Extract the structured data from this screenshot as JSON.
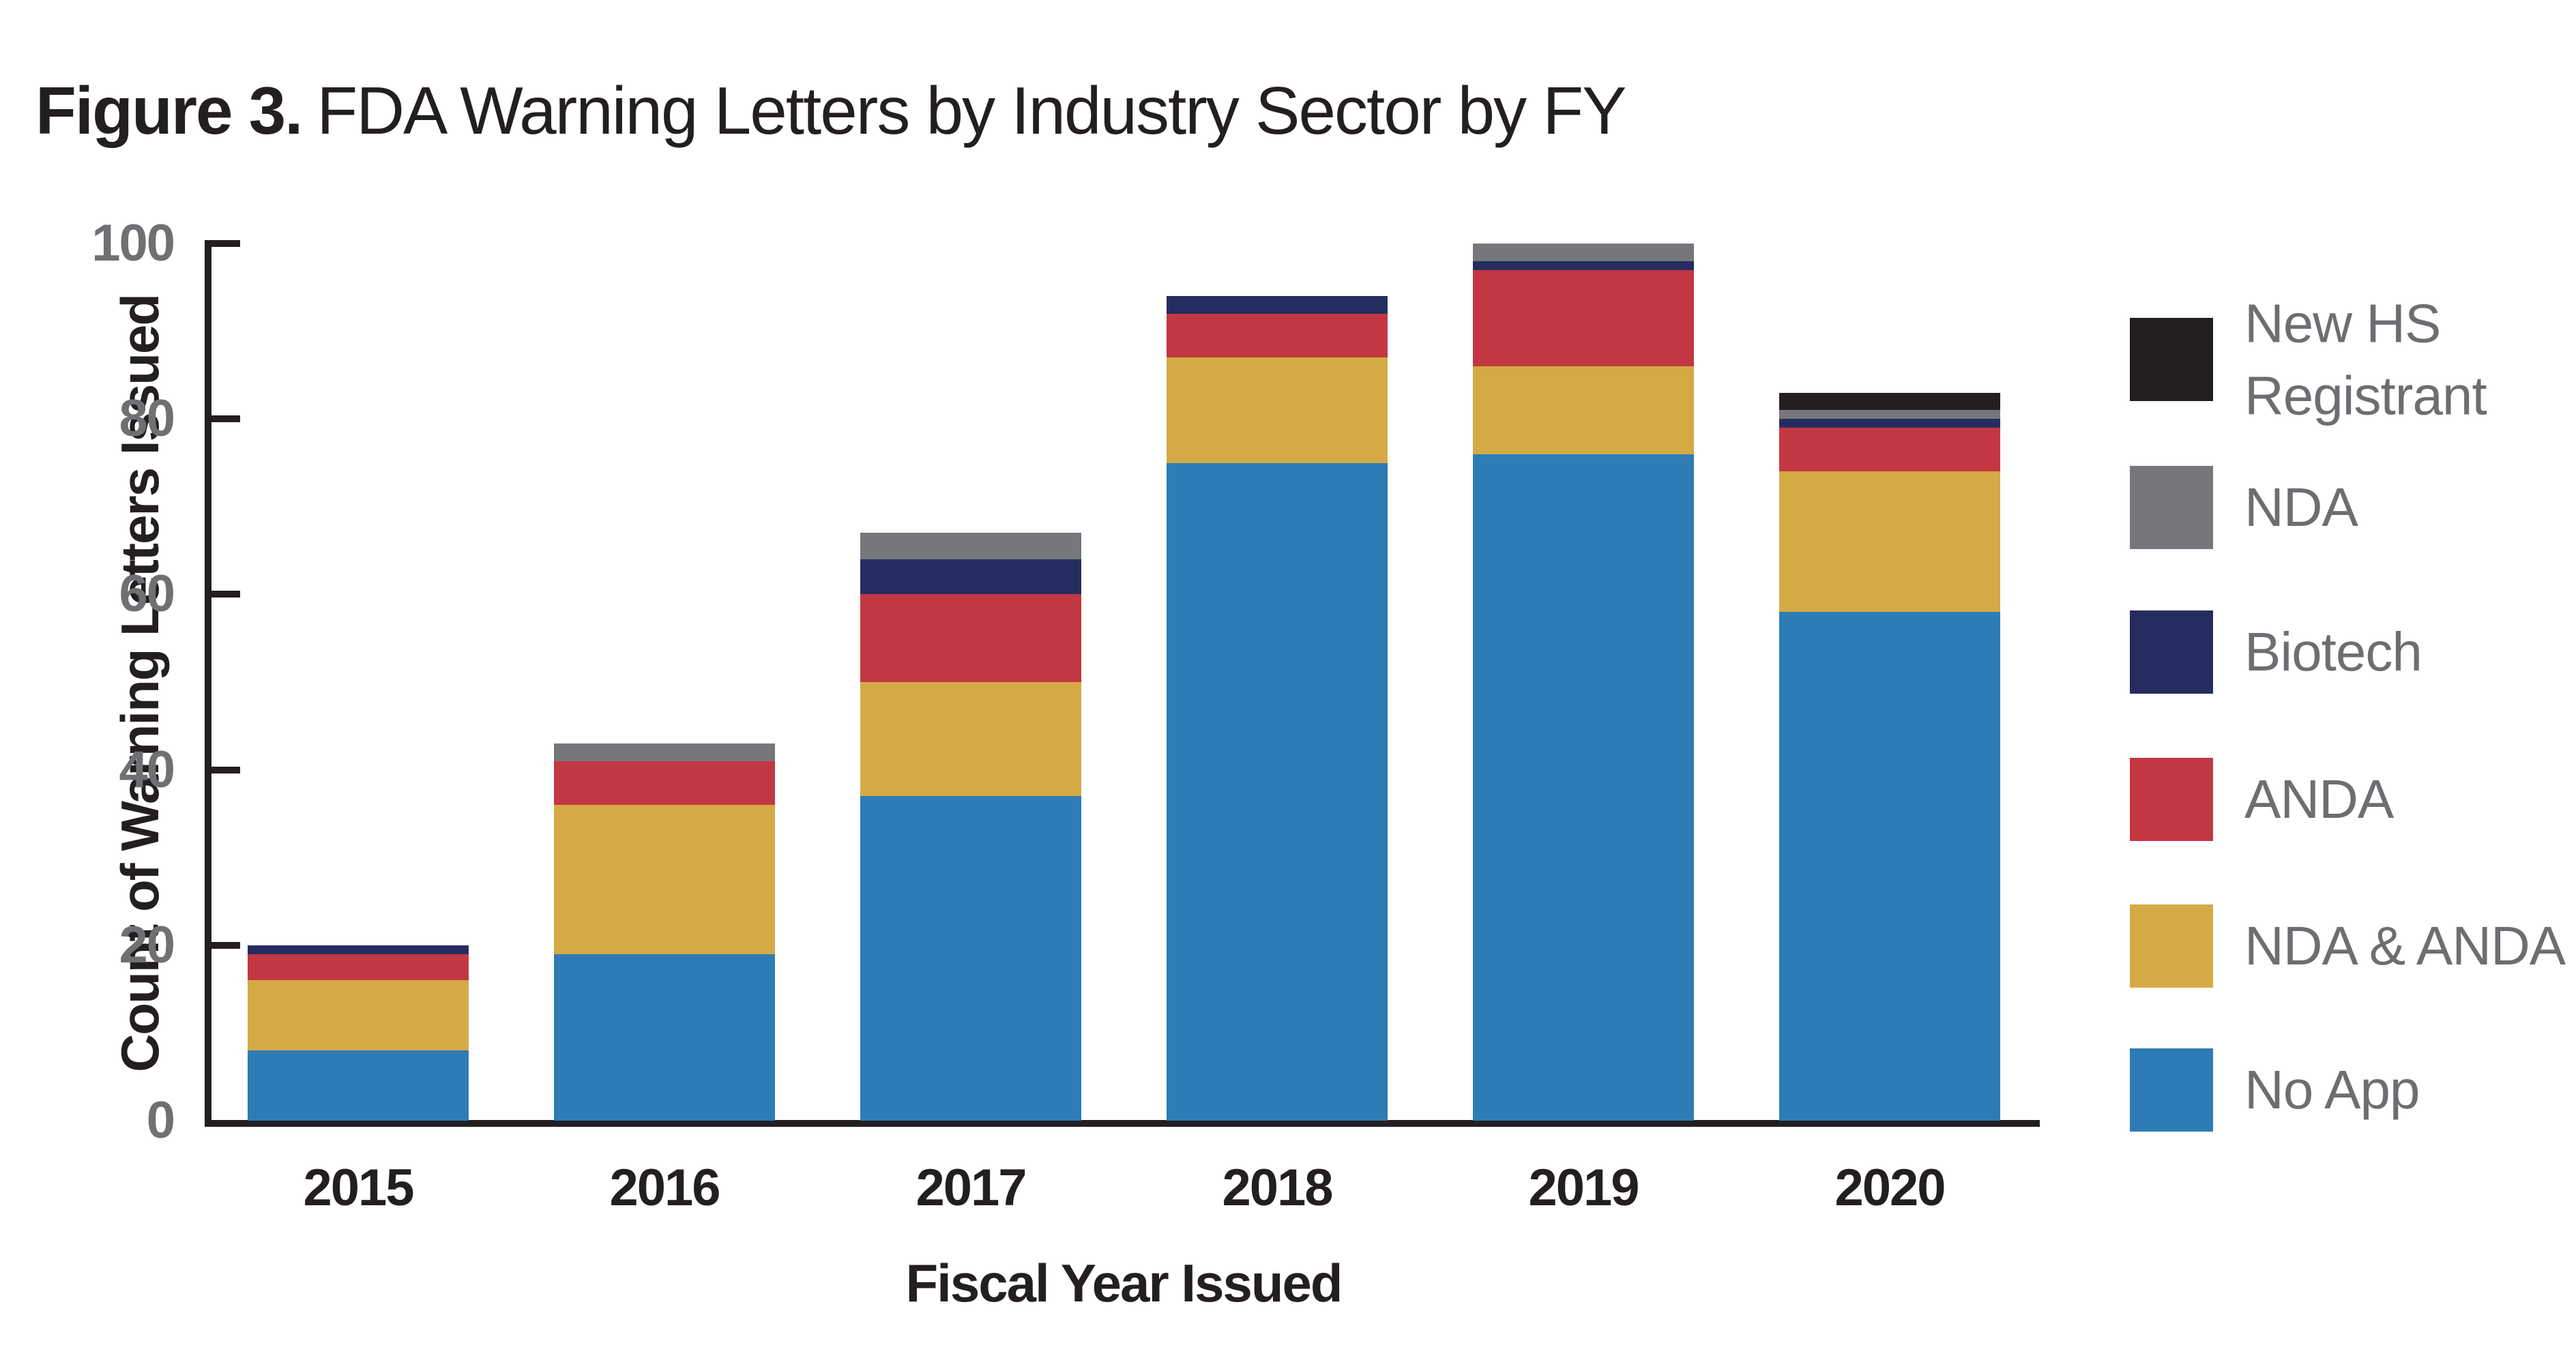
{
  "title": {
    "prefix": "Figure 3.",
    "rest": "FDA Warning Letters by Industry Sector by FY"
  },
  "chart_data": {
    "type": "bar",
    "stacked": true,
    "title": "Figure 3. FDA Warning Letters by Industry Sector by FY",
    "xlabel": "Fiscal Year Issued",
    "ylabel": "Count of Warning Letters Issued",
    "categories": [
      "2015",
      "2016",
      "2017",
      "2018",
      "2019",
      "2020"
    ],
    "yticks": [
      0,
      20,
      40,
      60,
      80,
      100
    ],
    "ylim": [
      0,
      100
    ],
    "grid": false,
    "legend_position": "center right",
    "series": [
      {
        "name": "No App",
        "color": "#2d7cb5",
        "values": [
          8,
          19,
          37,
          75,
          76,
          58
        ]
      },
      {
        "name": "NDA & ANDA",
        "color": "#d5aa45",
        "values": [
          8,
          17,
          13,
          12,
          10,
          16
        ]
      },
      {
        "name": "ANDA",
        "color": "#c33742",
        "values": [
          3,
          5,
          10,
          5,
          11,
          5
        ]
      },
      {
        "name": "Biotech",
        "color": "#252d60",
        "values": [
          1,
          0,
          4,
          2,
          1,
          1
        ]
      },
      {
        "name": "NDA",
        "color": "#75777b",
        "values": [
          0,
          2,
          3,
          0,
          2,
          1
        ]
      },
      {
        "name": "New HS Registrant",
        "color": "#231f20",
        "values": [
          0,
          0,
          0,
          0,
          0,
          2
        ]
      }
    ],
    "totals": [
      20,
      43,
      67,
      94,
      100,
      83
    ],
    "legend": [
      {
        "label": "New HS\nRegistrant",
        "color": "#231f20"
      },
      {
        "label": "NDA",
        "color": "#75777b"
      },
      {
        "label": "Biotech",
        "color": "#252d60"
      },
      {
        "label": "ANDA",
        "color": "#c33742"
      },
      {
        "label": "NDA & ANDA",
        "color": "#d5aa45"
      },
      {
        "label": "No App",
        "color": "#2d7cb5"
      }
    ]
  }
}
